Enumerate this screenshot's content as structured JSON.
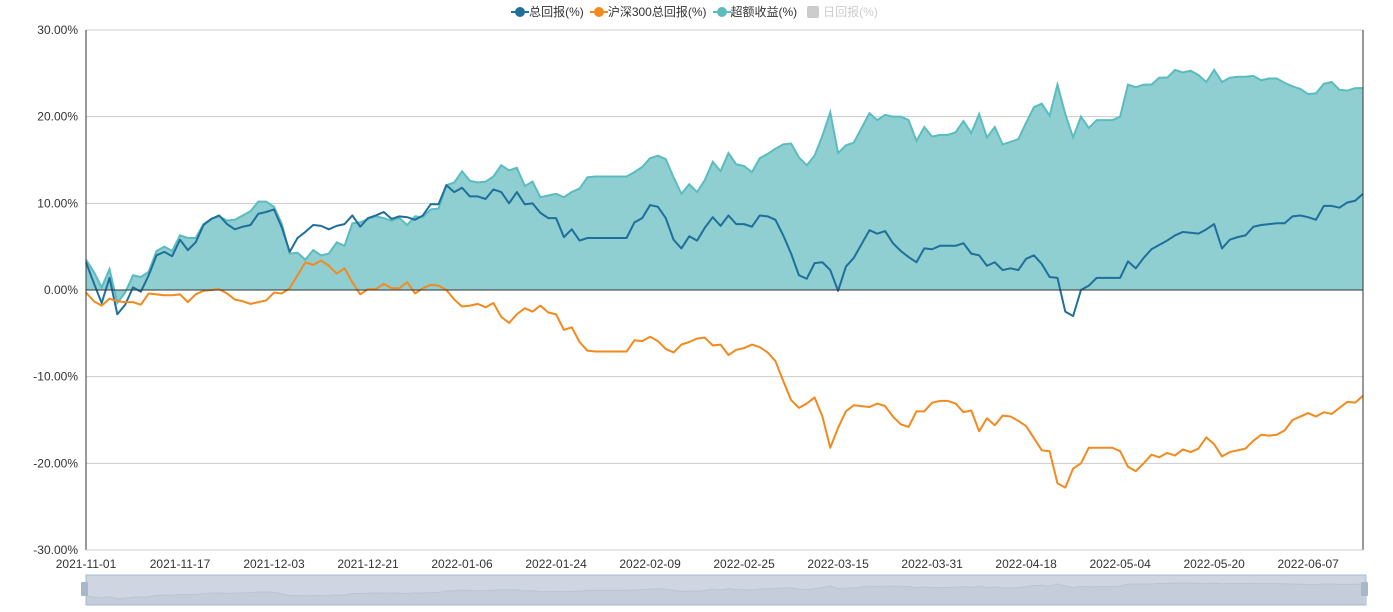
{
  "legend": [
    {
      "label": "总回报(%)",
      "color": "#1f6f9a",
      "enabled": true
    },
    {
      "label": "沪深300总回报(%)",
      "color": "#f28a1e",
      "enabled": true
    },
    {
      "label": "超额收益(%)",
      "color": "#5bbcbf",
      "enabled": true
    },
    {
      "label": "日回报(%)",
      "color": "#cccccc",
      "enabled": false
    }
  ],
  "chart_data": {
    "type": "line",
    "title": "",
    "xlabel": "",
    "ylabel": "",
    "ylim": [
      -30,
      30
    ],
    "y_ticks": [
      30,
      20,
      10,
      0,
      -10,
      -20,
      -30
    ],
    "y_tick_labels": [
      "30.00%",
      "20.00%",
      "10.00%",
      "0.00%",
      "-10.00%",
      "-20.00%",
      "-30.00%"
    ],
    "x_tick_every": 12,
    "x_tick_labels": [
      "2021-11-01",
      "2021-11-17",
      "2021-12-03",
      "2021-12-21",
      "2022-01-06",
      "2022-01-24",
      "2022-02-09",
      "2022-02-25",
      "2022-03-15",
      "2022-03-31",
      "2022-04-18",
      "2022-05-04",
      "2022-05-20",
      "2022-06-07"
    ],
    "grid": true,
    "legend_position": "top-center",
    "series": [
      {
        "name": "总回报(%)",
        "type": "line",
        "color": "#1f6f9a",
        "values": [
          3.2,
          0.8,
          -1.5,
          1.4,
          -2.8,
          -1.7,
          0.3,
          -0.2,
          1.7,
          4.0,
          4.4,
          3.9,
          5.8,
          4.6,
          5.5,
          7.5,
          8.2,
          8.6,
          7.6,
          7.0,
          7.3,
          7.5,
          8.8,
          9.0,
          9.3,
          7.2,
          4.4,
          6.0,
          6.7,
          7.5,
          7.4,
          7.0,
          7.4,
          7.6,
          8.6,
          7.3,
          8.3,
          8.6,
          9.0,
          8.2,
          8.5,
          8.4,
          8.1,
          8.6,
          9.9,
          9.9,
          12.1,
          11.3,
          11.8,
          10.8,
          10.8,
          10.5,
          11.6,
          11.3,
          10.0,
          11.3,
          9.9,
          10.0,
          8.9,
          8.3,
          8.3,
          6.1,
          7.0,
          5.7,
          6.0,
          6.0,
          6.0,
          6.0,
          6.0,
          6.0,
          7.8,
          8.3,
          9.8,
          9.6,
          8.3,
          5.8,
          4.8,
          6.2,
          5.7,
          7.2,
          8.4,
          7.4,
          8.6,
          7.6,
          7.6,
          7.3,
          8.6,
          8.5,
          8.1,
          6.3,
          4.2,
          1.7,
          1.3,
          3.1,
          3.2,
          2.3,
          -0.1,
          2.7,
          3.7,
          5.3,
          6.9,
          6.5,
          6.8,
          5.4,
          4.5,
          3.8,
          3.2,
          4.8,
          4.7,
          5.1,
          5.1,
          5.1,
          5.4,
          4.2,
          4.0,
          2.8,
          3.2,
          2.3,
          2.5,
          2.3,
          3.6,
          4.0,
          3.0,
          1.5,
          1.4,
          -2.5,
          -3.0,
          0.0,
          0.5,
          1.4,
          1.4,
          1.4,
          1.4,
          3.3,
          2.5,
          3.7,
          4.7,
          5.2,
          5.7,
          6.3,
          6.7,
          6.6,
          6.5,
          7.0,
          7.6,
          4.8,
          5.8,
          6.1,
          6.3,
          7.3,
          7.5,
          7.6,
          7.7,
          7.7,
          8.5,
          8.6,
          8.4,
          8.1,
          9.7,
          9.7,
          9.5,
          10.1,
          10.3,
          11.1
        ]
      },
      {
        "name": "沪深300总回报(%)",
        "type": "line",
        "color": "#f28a1e",
        "values": [
          -0.3,
          -1.3,
          -1.8,
          -1.0,
          -1.3,
          -1.4,
          -1.4,
          -1.7,
          -0.4,
          -0.5,
          -0.6,
          -0.6,
          -0.5,
          -1.4,
          -0.5,
          -0.1,
          0.0,
          0.1,
          -0.4,
          -1.1,
          -1.3,
          -1.6,
          -1.4,
          -1.2,
          -0.3,
          -0.4,
          0.2,
          1.7,
          3.2,
          2.9,
          3.4,
          2.8,
          1.9,
          2.5,
          0.9,
          -0.5,
          0.1,
          0.1,
          0.7,
          0.2,
          0.2,
          0.9,
          -0.4,
          0.2,
          0.6,
          0.5,
          0.0,
          -1.1,
          -1.9,
          -1.8,
          -1.6,
          -2.0,
          -1.5,
          -3.1,
          -3.8,
          -2.8,
          -2.1,
          -2.5,
          -1.8,
          -2.6,
          -2.8,
          -4.6,
          -4.3,
          -6.0,
          -7.0,
          -7.1,
          -7.1,
          -7.1,
          -7.1,
          -7.1,
          -5.8,
          -5.9,
          -5.4,
          -5.9,
          -6.8,
          -7.2,
          -6.3,
          -6.0,
          -5.6,
          -5.5,
          -6.4,
          -6.3,
          -7.5,
          -6.9,
          -6.7,
          -6.3,
          -6.6,
          -7.2,
          -8.2,
          -10.5,
          -12.7,
          -13.6,
          -13.1,
          -12.4,
          -14.6,
          -18.2,
          -15.9,
          -14.0,
          -13.3,
          -13.4,
          -13.5,
          -13.1,
          -13.4,
          -14.6,
          -15.5,
          -15.8,
          -14.0,
          -14.0,
          -13.0,
          -12.8,
          -12.8,
          -13.1,
          -14.1,
          -13.9,
          -16.3,
          -14.8,
          -15.6,
          -14.5,
          -14.6,
          -15.1,
          -15.7,
          -17.1,
          -18.5,
          -18.6,
          -22.3,
          -22.8,
          -20.6,
          -20.0,
          -18.2,
          -18.2,
          -18.2,
          -18.2,
          -18.6,
          -20.4,
          -20.9,
          -20.0,
          -19.0,
          -19.3,
          -18.8,
          -19.1,
          -18.4,
          -18.7,
          -18.3,
          -17.0,
          -17.8,
          -19.2,
          -18.7,
          -18.5,
          -18.3,
          -17.4,
          -16.7,
          -16.8,
          -16.7,
          -16.2,
          -15.0,
          -14.6,
          -14.2,
          -14.6,
          -14.1,
          -14.3,
          -13.6,
          -12.9,
          -13.0,
          -12.2
        ]
      },
      {
        "name": "超额收益(%)",
        "type": "area",
        "color": "#5bbcbf",
        "fill": "#8fcfd2",
        "values": [
          3.5,
          2.1,
          0.3,
          2.4,
          -1.5,
          -0.3,
          1.7,
          1.5,
          2.1,
          4.5,
          5.0,
          4.5,
          6.3,
          6.0,
          6.0,
          7.6,
          8.2,
          8.5,
          8.0,
          8.1,
          8.6,
          9.1,
          10.2,
          10.2,
          9.6,
          7.6,
          4.2,
          4.3,
          3.5,
          4.6,
          4.0,
          4.2,
          5.5,
          5.1,
          7.7,
          7.8,
          8.2,
          8.5,
          8.3,
          8.0,
          8.3,
          7.5,
          8.5,
          8.4,
          9.3,
          9.4,
          12.1,
          12.4,
          13.7,
          12.6,
          12.4,
          12.5,
          13.1,
          14.4,
          13.8,
          14.1,
          12.0,
          12.5,
          10.7,
          10.9,
          11.1,
          10.7,
          11.3,
          11.7,
          13.0,
          13.1,
          13.1,
          13.1,
          13.1,
          13.1,
          13.6,
          14.2,
          15.2,
          15.5,
          15.1,
          13.0,
          11.1,
          12.2,
          11.3,
          12.7,
          14.8,
          13.7,
          15.8,
          14.5,
          14.3,
          13.6,
          15.2,
          15.7,
          16.3,
          16.8,
          16.9,
          15.3,
          14.4,
          15.5,
          17.8,
          20.5,
          15.8,
          16.7,
          17.0,
          18.7,
          20.4,
          19.6,
          20.2,
          20.0,
          20.0,
          19.6,
          17.2,
          18.8,
          17.7,
          17.9,
          17.9,
          18.2,
          19.5,
          18.1,
          20.3,
          17.6,
          18.8,
          16.8,
          17.1,
          17.4,
          19.3,
          21.1,
          21.5,
          20.1,
          23.7,
          20.3,
          17.6,
          20.0,
          18.7,
          19.6,
          19.6,
          19.6,
          20.0,
          23.7,
          23.4,
          23.7,
          23.7,
          24.5,
          24.5,
          25.4,
          25.1,
          25.3,
          24.8,
          24.0,
          25.4,
          24.0,
          24.5,
          24.6,
          24.6,
          24.7,
          24.2,
          24.4,
          24.4,
          23.9,
          23.5,
          23.2,
          22.6,
          22.7,
          23.8,
          24.0,
          23.1,
          23.0,
          23.3,
          23.3
        ]
      }
    ]
  },
  "data_zoom": {
    "start_percent": 0,
    "end_percent": 100
  }
}
